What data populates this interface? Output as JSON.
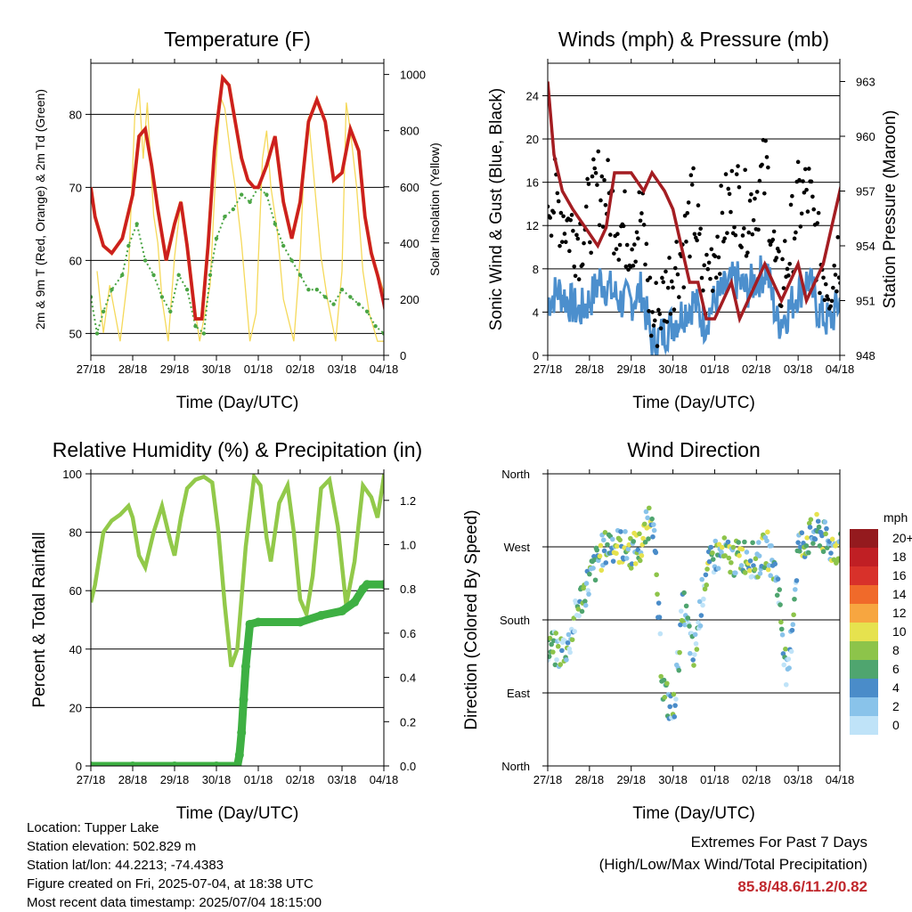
{
  "colors": {
    "temp_2m": "#cc1f1f",
    "temp_9m": "#e6892e",
    "dewpoint": "#4aa544",
    "insolation": "#f5d95a",
    "wind": "#4c8fcd",
    "gust": "#000000",
    "pressure": "#a41d22",
    "rh": "#92c94a",
    "precip": "#3eb043",
    "highlight": "#c0282d"
  },
  "x_ticks": [
    "27/18",
    "28/18",
    "29/18",
    "30/18",
    "01/18",
    "02/18",
    "03/18",
    "04/18"
  ],
  "chart_data": [
    {
      "type": "line",
      "title": "Temperature (F)",
      "xlabel": "Time (Day/UTC)",
      "ylabel": "2m & 9m T (Red, Orange) & 2m Td (Green)",
      "y2label": "Solar Insolation (Yellow)",
      "ylim": [
        47,
        87
      ],
      "y2lim": [
        0,
        1040
      ],
      "yticks": [
        50,
        60,
        70,
        80
      ],
      "y2ticks": [
        0,
        200,
        400,
        600,
        800,
        1000
      ],
      "x_unit": "days since 27/18",
      "series": [
        {
          "name": "2m T",
          "x": [
            0,
            0.1,
            0.3,
            0.5,
            0.75,
            1.0,
            1.15,
            1.3,
            1.45,
            1.6,
            1.8,
            2.0,
            2.15,
            2.3,
            2.5,
            2.65,
            2.8,
            2.95,
            3.0,
            3.15,
            3.3,
            3.45,
            3.6,
            3.75,
            3.9,
            4.0,
            4.2,
            4.4,
            4.6,
            4.8,
            5.0,
            5.2,
            5.4,
            5.6,
            5.8,
            6.0,
            6.2,
            6.4,
            6.55,
            6.7,
            6.85,
            7.0,
            7.1,
            7.2,
            7.3,
            7.4,
            7.5
          ],
          "values": [
            70,
            66,
            62,
            61,
            63,
            69,
            77,
            78,
            73,
            67,
            60,
            65,
            68,
            62,
            52,
            52,
            62,
            75,
            78,
            85,
            84,
            79,
            74,
            71,
            70,
            70,
            73,
            77,
            68,
            63,
            68,
            79,
            82,
            79,
            71,
            72,
            78,
            75,
            66,
            61,
            58,
            54,
            51,
            49,
            54,
            60,
            66
          ]
        },
        {
          "name": "9m T",
          "x": [
            0,
            0.1,
            0.3,
            0.5,
            0.75,
            1.0,
            1.15,
            1.3,
            1.45,
            1.6,
            1.8,
            2.0,
            2.15,
            2.3,
            2.5,
            2.65,
            2.8,
            2.95,
            3.0,
            3.15,
            3.3,
            3.45,
            3.6,
            3.75,
            3.9,
            4.0,
            4.2,
            4.4,
            4.6,
            4.8,
            5.0,
            5.2,
            5.4,
            5.6,
            5.8,
            6.0,
            6.2,
            6.4,
            6.55,
            6.7,
            6.85,
            7.0,
            7.1,
            7.2,
            7.3,
            7.4,
            7.5
          ],
          "values": [
            70,
            66,
            62,
            61,
            63,
            69,
            77,
            78,
            73,
            67,
            60,
            65,
            68,
            62,
            52,
            52,
            62,
            75,
            78,
            85,
            84,
            79,
            74,
            71,
            70,
            70,
            73,
            77,
            68,
            63,
            68,
            79,
            82,
            79,
            71,
            72,
            78,
            75,
            66,
            61,
            58,
            55,
            52,
            50,
            54,
            59,
            65
          ]
        },
        {
          "name": "2m Td",
          "x": [
            0,
            0.15,
            0.3,
            0.5,
            0.75,
            0.9,
            1.1,
            1.3,
            1.5,
            1.7,
            1.9,
            2.1,
            2.3,
            2.5,
            2.7,
            2.85,
            3.0,
            3.2,
            3.4,
            3.6,
            3.8,
            4.0,
            4.2,
            4.4,
            4.6,
            4.8,
            5.0,
            5.2,
            5.4,
            5.6,
            5.8,
            6.0,
            6.2,
            6.4,
            6.6,
            6.8,
            7.0,
            7.2,
            7.35,
            7.5
          ],
          "values": [
            55,
            50,
            53,
            56,
            58,
            62,
            65,
            60,
            58,
            55,
            53,
            58,
            56,
            51,
            50,
            58,
            63,
            66,
            67,
            69,
            68,
            70,
            69,
            65,
            62,
            60,
            58,
            56,
            56,
            55,
            54,
            56,
            55,
            54,
            53,
            51,
            50,
            50,
            50,
            50
          ]
        },
        {
          "name": "Solar Insolation",
          "axis": "y2",
          "x": [
            0.15,
            0.3,
            0.45,
            0.7,
            0.9,
            1.05,
            1.15,
            1.25,
            1.35,
            1.5,
            1.6,
            1.7,
            1.85,
            2.0,
            2.15,
            2.3,
            2.45,
            2.6,
            2.85,
            3.0,
            3.1,
            3.2,
            3.35,
            3.45,
            3.6,
            3.8,
            3.95,
            4.1,
            4.2,
            4.3,
            4.45,
            4.6,
            4.85,
            5.0,
            5.1,
            5.2,
            5.35,
            5.5,
            5.65,
            5.85,
            6.0,
            6.1,
            6.2,
            6.35,
            6.5,
            6.65,
            6.85,
            7.0,
            7.3,
            7.4,
            7.5
          ],
          "values": [
            300,
            80,
            250,
            50,
            300,
            850,
            950,
            700,
            900,
            500,
            400,
            200,
            50,
            350,
            550,
            400,
            200,
            50,
            250,
            700,
            920,
            880,
            700,
            600,
            400,
            50,
            150,
            700,
            800,
            600,
            450,
            200,
            50,
            350,
            700,
            850,
            600,
            350,
            200,
            50,
            300,
            900,
            800,
            600,
            300,
            150,
            50,
            50,
            200,
            600,
            1000
          ]
        }
      ]
    },
    {
      "type": "line",
      "title": "Winds (mph) & Pressure (mb)",
      "xlabel": "Time (Day/UTC)",
      "ylabel": "Sonic Wind & Gust (Blue, Black)",
      "y2label": "Station Pressure (Maroon)",
      "ylim": [
        0,
        27
      ],
      "y2lim": [
        948,
        964
      ],
      "yticks": [
        0,
        4,
        8,
        12,
        16,
        20,
        24
      ],
      "y2ticks": [
        948,
        951,
        954,
        957,
        960,
        963
      ],
      "x_unit": "days since 27/18",
      "series": [
        {
          "name": "Sonic Wind",
          "x": [
            0,
            0.25,
            0.5,
            0.75,
            1.0,
            1.25,
            1.5,
            1.75,
            2.0,
            2.25,
            2.5,
            2.75,
            3.0,
            3.25,
            3.5,
            3.75,
            4.0,
            4.25,
            4.5,
            4.75,
            5.0,
            5.25,
            5.5,
            5.75,
            6.0,
            6.25,
            6.5,
            6.75,
            7.0,
            7.25,
            7.5
          ],
          "values": [
            5,
            6,
            5,
            4,
            5,
            7,
            6,
            5,
            5,
            6,
            1,
            2,
            3,
            4,
            5,
            3,
            5,
            6,
            7,
            6,
            7,
            8,
            3,
            4,
            6,
            7,
            4,
            3,
            5,
            6,
            7
          ]
        },
        {
          "name": "Gust",
          "x": [
            0,
            0.25,
            0.5,
            0.75,
            1.0,
            1.25,
            1.5,
            1.75,
            2.0,
            2.25,
            2.5,
            2.75,
            3.0,
            3.25,
            3.5,
            3.75,
            4.0,
            4.25,
            4.5,
            4.75,
            5.0,
            5.25,
            5.5,
            5.75,
            6.0,
            6.25,
            6.5,
            6.75,
            7.0,
            7.25,
            7.5
          ],
          "values": [
            15,
            14,
            12,
            11,
            13,
            16,
            14,
            12,
            11,
            13,
            3,
            5,
            8,
            10,
            14,
            6,
            10,
            13,
            15,
            13,
            15,
            17,
            6,
            9,
            14,
            15,
            9,
            7,
            10,
            13,
            15
          ]
        },
        {
          "name": "Station Pressure",
          "axis": "y2",
          "x": [
            0,
            0.15,
            0.35,
            0.6,
            0.9,
            1.2,
            1.4,
            1.6,
            1.8,
            2.0,
            2.3,
            2.5,
            2.8,
            3.0,
            3.2,
            3.4,
            3.6,
            3.8,
            4.0,
            4.2,
            4.4,
            4.6,
            4.8,
            5.0,
            5.2,
            5.4,
            5.6,
            5.8,
            6.0,
            6.2,
            6.4,
            6.6,
            6.8,
            7.0,
            7.2,
            7.4,
            7.5
          ],
          "values": [
            963,
            959,
            957,
            956,
            955,
            954,
            955,
            958,
            958,
            958,
            957,
            958,
            957,
            956,
            954,
            952,
            952,
            950,
            950,
            951,
            952,
            950,
            951,
            952,
            953,
            952,
            951,
            952,
            953,
            951,
            952,
            953,
            955,
            957,
            959,
            961,
            961
          ]
        }
      ]
    },
    {
      "type": "line",
      "title": "Relative Humidity (%) & Precipitation (in)",
      "xlabel": "Time (Day/UTC)",
      "ylabel": "Percent & Total Rainfall",
      "ylim": [
        0,
        100
      ],
      "y2lim": [
        0,
        1.32
      ],
      "yticks": [
        0,
        20,
        40,
        60,
        80,
        100
      ],
      "y2ticks": [
        0.0,
        0.2,
        0.4,
        0.6,
        0.8,
        1.0,
        1.2
      ],
      "x_unit": "days since 27/18",
      "series": [
        {
          "name": "Relative Humidity",
          "x": [
            0,
            0.1,
            0.3,
            0.5,
            0.7,
            0.9,
            1.0,
            1.15,
            1.3,
            1.5,
            1.7,
            1.9,
            2.0,
            2.15,
            2.3,
            2.5,
            2.7,
            2.9,
            3.05,
            3.2,
            3.35,
            3.5,
            3.7,
            3.9,
            4.05,
            4.2,
            4.3,
            4.5,
            4.7,
            4.85,
            5.0,
            5.15,
            5.3,
            5.5,
            5.7,
            5.9,
            6.1,
            6.3,
            6.5,
            6.7,
            6.85,
            7.0,
            7.2,
            7.35,
            7.5
          ],
          "values": [
            56,
            62,
            80,
            84,
            86,
            89,
            85,
            72,
            68,
            80,
            89,
            77,
            72,
            85,
            95,
            98,
            99,
            97,
            80,
            55,
            34,
            40,
            75,
            99,
            96,
            78,
            70,
            90,
            96,
            80,
            57,
            52,
            65,
            95,
            98,
            82,
            55,
            70,
            96,
            92,
            85,
            99,
            98,
            70,
            57
          ]
        },
        {
          "name": "Total Precipitation",
          "axis": "y2",
          "x": [
            0,
            1.0,
            2.0,
            3.0,
            3.5,
            3.55,
            3.6,
            3.65,
            3.7,
            3.8,
            4.0,
            5.0,
            5.5,
            6.0,
            6.3,
            6.5,
            6.6,
            7.0,
            7.5
          ],
          "values": [
            0,
            0,
            0,
            0,
            0,
            0.05,
            0.15,
            0.3,
            0.45,
            0.64,
            0.65,
            0.65,
            0.68,
            0.7,
            0.74,
            0.8,
            0.82,
            0.82,
            0.82
          ]
        }
      ]
    },
    {
      "type": "scatter",
      "title": "Wind Direction",
      "xlabel": "Time (Day/UTC)",
      "ylabel": "Direction (Colored By Speed)",
      "ylim": [
        0,
        360
      ],
      "yticks": [
        "North",
        "East",
        "South",
        "West",
        "North"
      ],
      "colorbar_title": "mph",
      "colorbar_labels": [
        "0",
        "2",
        "4",
        "6",
        "8",
        "10",
        "12",
        "14",
        "16",
        "18",
        "20+"
      ],
      "colorbar_colors": [
        "#bfe3f8",
        "#89c3ea",
        "#4a8cc9",
        "#4fa56f",
        "#8dc44a",
        "#e6e24e",
        "#f7a640",
        "#f06a2a",
        "#d8312a",
        "#c01f24",
        "#941a1e"
      ],
      "x_unit": "days since 27/18",
      "series": [
        {
          "name": "Wind Direction",
          "x": [
            0,
            0.25,
            0.5,
            0.75,
            1.0,
            1.25,
            1.5,
            1.75,
            2.0,
            2.25,
            2.5,
            2.75,
            3.0,
            3.25,
            3.5,
            3.75,
            4.0,
            4.25,
            4.5,
            4.75,
            5.0,
            5.25,
            5.5,
            5.75,
            6.0,
            6.25,
            6.5,
            6.75,
            7.0,
            7.25,
            7.5
          ],
          "values": [
            150,
            140,
            150,
            200,
            230,
            260,
            275,
            270,
            265,
            270,
            320,
            100,
            60,
            200,
            130,
            230,
            260,
            260,
            255,
            260,
            250,
            270,
            230,
            100,
            270,
            280,
            290,
            270,
            270,
            280,
            290
          ]
        }
      ]
    }
  ],
  "footer": {
    "location": "Location: Tupper Lake",
    "elevation": "Station elevation: 502.829 m",
    "latlon": "Station lat/lon: 44.2213; -74.4383",
    "created": "Figure created on Fri, 2025-07-04, at 18:38 UTC",
    "recent": "Most recent data timestamp: 2025/07/04 18:15:00"
  },
  "extremes": {
    "title": "Extremes For Past 7 Days",
    "subtitle": "(High/Low/Max Wind/Total Precipitation)",
    "values": "85.8/48.6/11.2/0.82"
  }
}
